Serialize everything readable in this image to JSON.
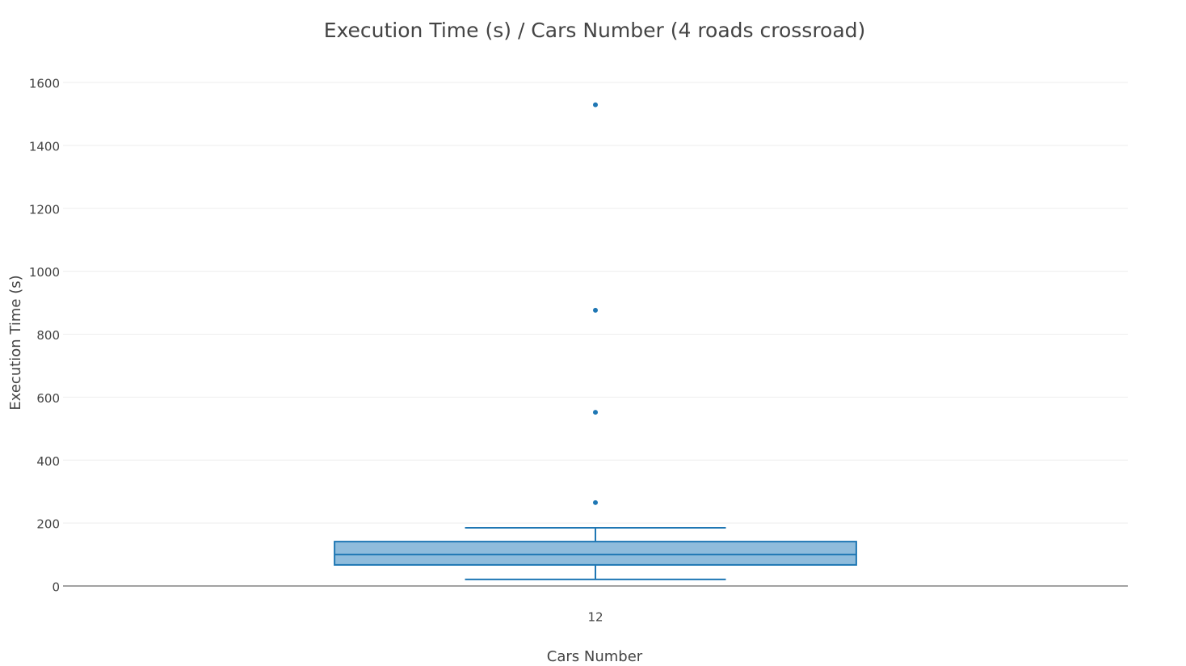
{
  "chart_data": {
    "type": "box",
    "title": "Execution Time (s) / Cars Number (4 roads crossroad)",
    "x_label": "Cars Number",
    "y_label": "Execution Time (s)",
    "categories": [
      "12"
    ],
    "boxes": [
      {
        "min": 21,
        "q1": 67,
        "median": 100,
        "q3": 141,
        "max": 185,
        "outliers": [
          265,
          552,
          876,
          1529
        ]
      }
    ],
    "color": "#1f77b4",
    "fill": "#8fbcdc",
    "ylim": [
      0,
      1600
    ],
    "yticks": [
      0,
      200,
      400,
      600,
      800,
      1000,
      1200,
      1400,
      1600
    ],
    "grid": true
  }
}
